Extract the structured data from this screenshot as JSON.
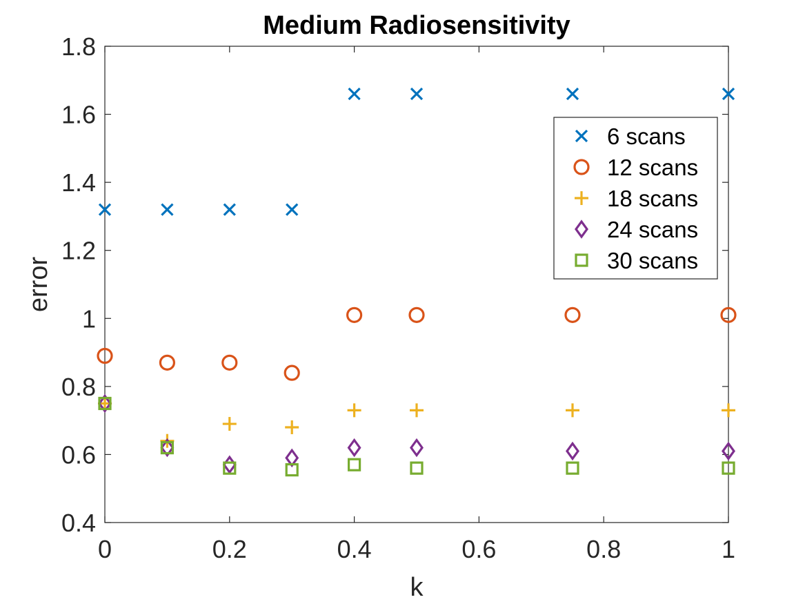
{
  "chart_data": {
    "type": "scatter",
    "title": "Medium Radiosensitivity",
    "xlabel": "k",
    "ylabel": "error",
    "xlim": [
      0,
      1
    ],
    "ylim": [
      0.4,
      1.8
    ],
    "x_ticks": [
      "0",
      "0.2",
      "0.4",
      "0.6",
      "0.8",
      "1"
    ],
    "y_ticks": [
      "0.4",
      "0.6",
      "0.8",
      "1",
      "1.2",
      "1.4",
      "1.6",
      "1.8"
    ],
    "grid": false,
    "legend_position": "top-right",
    "x": [
      0,
      0.1,
      0.2,
      0.3,
      0.4,
      0.5,
      0.75,
      1
    ],
    "series": [
      {
        "name": "6 scans",
        "marker": "x",
        "color": "#0072BD",
        "values": [
          1.32,
          1.32,
          1.32,
          1.32,
          1.66,
          1.66,
          1.66,
          1.66
        ]
      },
      {
        "name": "12 scans",
        "marker": "o",
        "color": "#D95319",
        "values": [
          0.89,
          0.87,
          0.87,
          0.84,
          1.01,
          1.01,
          1.01,
          1.01
        ]
      },
      {
        "name": "18 scans",
        "marker": "+",
        "color": "#EDB120",
        "values": [
          0.75,
          0.64,
          0.69,
          0.68,
          0.73,
          0.73,
          0.73,
          0.73
        ]
      },
      {
        "name": "24 scans",
        "marker": "diamond",
        "color": "#7E2F8E",
        "values": [
          0.75,
          0.62,
          0.57,
          0.59,
          0.62,
          0.62,
          0.61,
          0.61
        ]
      },
      {
        "name": "30 scans",
        "marker": "square",
        "color": "#77AC30",
        "values": [
          0.75,
          0.62,
          0.56,
          0.555,
          0.57,
          0.56,
          0.56,
          0.56
        ]
      }
    ]
  }
}
